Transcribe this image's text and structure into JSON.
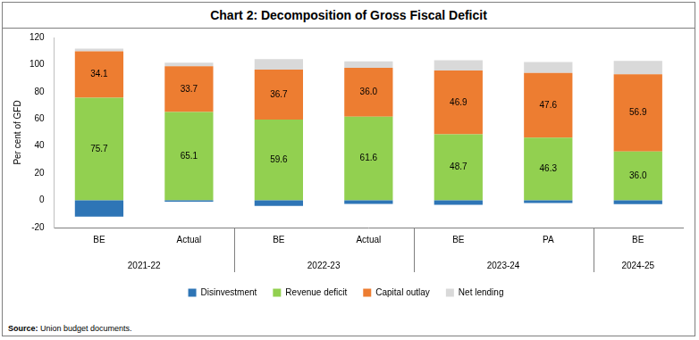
{
  "chart_data": {
    "type": "bar",
    "title": "Chart 2: Decomposition of Gross Fiscal Deficit",
    "y_label": "Per cent of GFD",
    "source": "Source: Union budget documents.",
    "categories": [
      "BE",
      "Actual",
      "BE",
      "Actual",
      "BE",
      "PA",
      "BE"
    ],
    "groups": [
      "2021-22",
      "2021-22",
      "2022-23",
      "2022-23",
      "2023-24",
      "2023-24",
      "2024-25"
    ],
    "stacked": true,
    "legend": "bottom",
    "grid": false,
    "ylim": [
      -20,
      120
    ],
    "yticks": [
      -20,
      0,
      20,
      40,
      60,
      80,
      100,
      120
    ],
    "series": [
      {
        "name": "Disinvestment",
        "color": "#2e75b6",
        "values": [
          -12.0,
          -1.0,
          -4.0,
          -2.5,
          -3.3,
          -2.0,
          -2.8
        ]
      },
      {
        "name": "Revenue deficit",
        "color": "#92d050",
        "values": [
          75.7,
          65.1,
          59.6,
          61.6,
          48.7,
          46.3,
          36.0
        ],
        "data_labels": true,
        "value_labels": [
          "75.7",
          "65.1",
          "59.6",
          "61.6",
          "48.7",
          "46.3",
          "36.0"
        ]
      },
      {
        "name": "Capital outlay",
        "color": "#ed7d31",
        "values": [
          34.1,
          33.7,
          36.7,
          36.0,
          46.9,
          47.6,
          56.9
        ],
        "data_labels": true,
        "value_labels": [
          "34.1",
          "33.7",
          "36.7",
          "36.0",
          "46.9",
          "47.6",
          "56.9"
        ]
      },
      {
        "name": "Net lending",
        "color": "#d9d9d9",
        "values": [
          2.0,
          2.7,
          7.7,
          4.9,
          7.7,
          8.1,
          9.9
        ]
      }
    ]
  }
}
